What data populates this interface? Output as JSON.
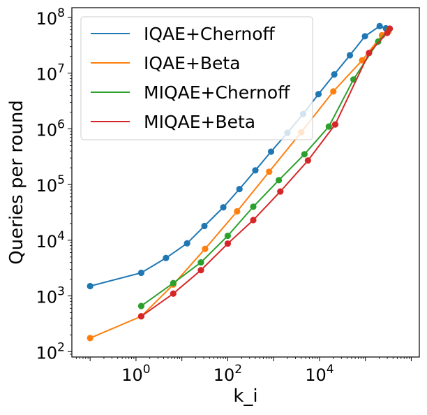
{
  "chart_data": {
    "type": "line",
    "xlabel": "k_i",
    "ylabel": "Queries per round",
    "xscale": "log",
    "yscale": "log",
    "xlim": [
      0.04,
      1500000
    ],
    "ylim": [
      80,
      150000000
    ],
    "x_ticks": [
      {
        "value": 1,
        "base": "10",
        "exp": "0"
      },
      {
        "value": 100,
        "base": "10",
        "exp": "2"
      },
      {
        "value": 10000,
        "base": "10",
        "exp": "4"
      }
    ],
    "y_ticks": [
      {
        "value": 100,
        "base": "10",
        "exp": "2"
      },
      {
        "value": 1000,
        "base": "10",
        "exp": "3"
      },
      {
        "value": 10000,
        "base": "10",
        "exp": "4"
      },
      {
        "value": 100000,
        "base": "10",
        "exp": "5"
      },
      {
        "value": 1000000,
        "base": "10",
        "exp": "6"
      },
      {
        "value": 10000000,
        "base": "10",
        "exp": "7"
      },
      {
        "value": 100000000,
        "base": "10",
        "exp": "8"
      }
    ],
    "legend_position": "top-left",
    "grid": false,
    "series": [
      {
        "name": "IQAE+Chernoff",
        "color": "#1f77b4",
        "x": [
          0.1,
          1.3,
          4.5,
          13,
          31,
          80,
          180,
          400,
          880,
          2000,
          4400,
          9500,
          21000,
          46000,
          98000,
          205000,
          280000
        ],
        "y": [
          1500,
          2600,
          4800,
          8800,
          18000,
          39000,
          83000,
          180000,
          390000,
          850000,
          1850000,
          4200000,
          9500000,
          21000000,
          46000000,
          70000000,
          64000000
        ]
      },
      {
        "name": "IQAE+Beta",
        "color": "#ff7f0e",
        "x": [
          0.1,
          1.3,
          6.5,
          32,
          160,
          800,
          4000,
          20000,
          85000,
          230000,
          320000
        ],
        "y": [
          175,
          430,
          1600,
          7000,
          33000,
          170000,
          870000,
          4700000,
          17000000,
          48000000,
          57000000
        ]
      },
      {
        "name": "MIQAE+Chernoff",
        "color": "#2ca02c",
        "x": [
          1.3,
          6.5,
          26,
          100,
          360,
          1300,
          4700,
          16000,
          55000,
          190000,
          320000
        ],
        "y": [
          660,
          1700,
          4000,
          12000,
          40000,
          120000,
          350000,
          1100000,
          7700000,
          37000000,
          60000000
        ]
      },
      {
        "name": "MIQAE+Beta",
        "color": "#d62728",
        "x": [
          1.3,
          6.5,
          26,
          100,
          360,
          1400,
          5600,
          22000,
          120000,
          300000,
          340000
        ],
        "y": [
          430,
          1100,
          2900,
          8700,
          23000,
          75000,
          270000,
          1200000,
          23000000,
          53000000,
          63000000
        ]
      }
    ]
  }
}
